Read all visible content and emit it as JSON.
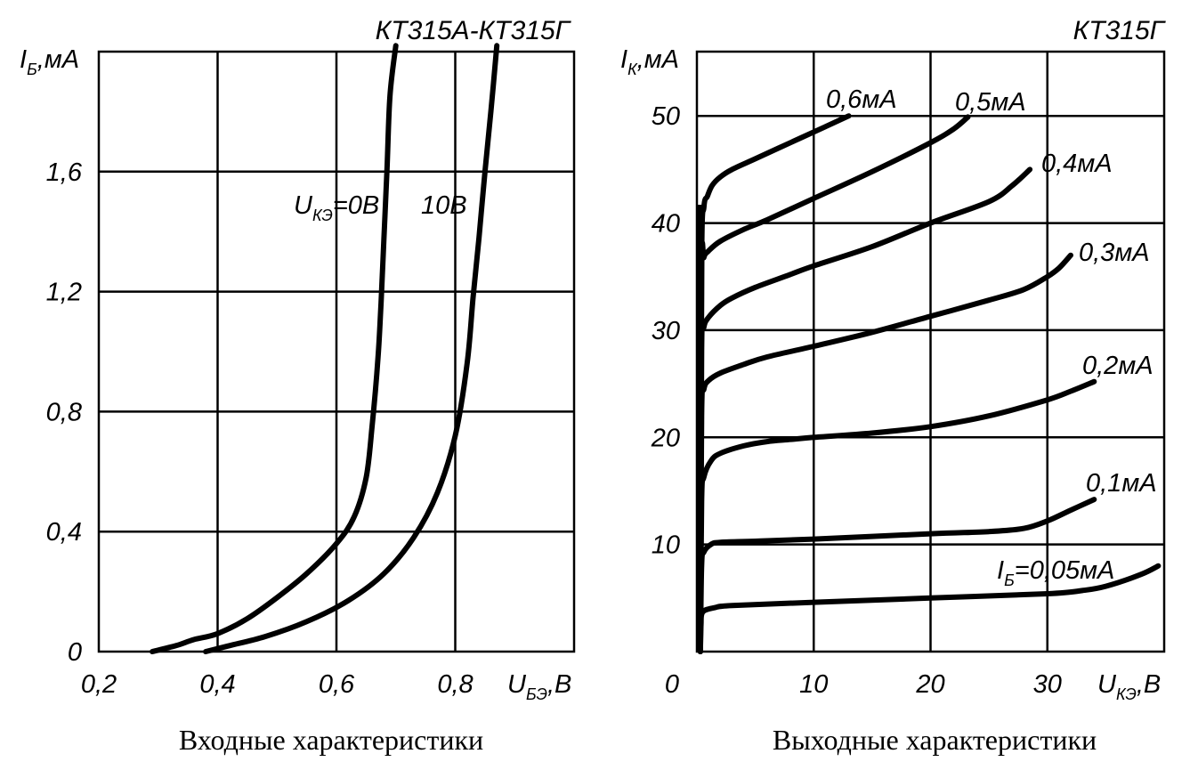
{
  "chart_data": [
    {
      "type": "line",
      "title": "КТ315А-КТ315Г",
      "caption": "Входные характеристики",
      "ylabel": {
        "main": "I",
        "sub": "Б",
        "unit": ",мА"
      },
      "xlabel": {
        "main": "U",
        "sub": "БЭ",
        "unit": ",В"
      },
      "xlim": [
        0.2,
        1.0
      ],
      "ylim": [
        0,
        2.0
      ],
      "x_ticks": [
        0.2,
        0.4,
        0.6,
        0.8
      ],
      "x_tick_labels": [
        "0,2",
        "0,4",
        "0,6",
        "0,8"
      ],
      "y_ticks": [
        0,
        0.4,
        0.8,
        1.2,
        1.6
      ],
      "y_tick_labels": [
        "0",
        "0,4",
        "0,8",
        "1,2",
        "1,6"
      ],
      "grid": true,
      "series": [
        {
          "name": "U_КЭ=0В",
          "label": {
            "main": "U",
            "sub": "КЭ",
            "rest": "=0В"
          },
          "x": [
            0.29,
            0.33,
            0.36,
            0.4,
            0.45,
            0.5,
            0.55,
            0.6,
            0.63,
            0.65,
            0.66,
            0.67,
            0.675,
            0.68,
            0.685,
            0.69,
            0.7
          ],
          "y": [
            0,
            0.02,
            0.04,
            0.06,
            0.11,
            0.18,
            0.26,
            0.36,
            0.45,
            0.58,
            0.75,
            0.98,
            1.16,
            1.38,
            1.6,
            1.85,
            2.02
          ]
        },
        {
          "name": "10В",
          "label": {
            "main": "10В",
            "sub": "",
            "rest": ""
          },
          "x": [
            0.38,
            0.42,
            0.48,
            0.55,
            0.62,
            0.68,
            0.73,
            0.77,
            0.8,
            0.82,
            0.83,
            0.84,
            0.85,
            0.86,
            0.87
          ],
          "y": [
            0,
            0.02,
            0.05,
            0.1,
            0.17,
            0.26,
            0.38,
            0.53,
            0.72,
            0.96,
            1.18,
            1.38,
            1.6,
            1.8,
            2.02
          ]
        }
      ]
    },
    {
      "type": "line",
      "title": "КТ315Г",
      "caption": "Выходные характеристики",
      "ylabel": {
        "main": "I",
        "sub": "К",
        "unit": ",мА"
      },
      "xlabel": {
        "main": "U",
        "sub": "КЭ",
        "unit": ",В"
      },
      "xlim": [
        0,
        40
      ],
      "ylim": [
        0,
        56
      ],
      "x_ticks": [
        10,
        20,
        30
      ],
      "x_tick_labels": [
        "10",
        "20",
        "30"
      ],
      "y_ticks": [
        10,
        20,
        30,
        40,
        50
      ],
      "y_tick_labels": [
        "10",
        "20",
        "30",
        "40",
        "50"
      ],
      "origin_label": "0",
      "grid": true,
      "series": [
        {
          "name": "I_Б=0,05мА",
          "label": {
            "main": "I",
            "sub": "Б",
            "rest": "=0,05мА"
          },
          "x": [
            0.3,
            0.35,
            0.5,
            1.5,
            3,
            10,
            20,
            30,
            33,
            35,
            38,
            39.5
          ],
          "y": [
            0,
            2.5,
            3.7,
            4.1,
            4.3,
            4.6,
            5.0,
            5.4,
            5.7,
            6.1,
            7.2,
            8.0
          ],
          "label_x": 27
        },
        {
          "name": "0,1мА",
          "label": {
            "main": "0,1мА",
            "sub": "",
            "rest": ""
          },
          "x": [
            0.3,
            0.4,
            0.6,
            1.2,
            2,
            5,
            10,
            20,
            25,
            28,
            30,
            32,
            34
          ],
          "y": [
            0,
            8,
            9.3,
            10.0,
            10.2,
            10.3,
            10.5,
            11.0,
            11.2,
            11.5,
            12.2,
            13.2,
            14.2
          ]
        },
        {
          "name": "0,2мА",
          "label": {
            "main": "0,2мА",
            "sub": "",
            "rest": ""
          },
          "x": [
            0.3,
            0.4,
            0.6,
            1.2,
            2,
            4,
            6,
            8,
            10,
            15,
            20,
            25,
            30,
            32,
            34
          ],
          "y": [
            0,
            14,
            16.3,
            17.8,
            18.5,
            19.2,
            19.6,
            19.8,
            20.0,
            20.4,
            21.0,
            22.0,
            23.5,
            24.3,
            25.2
          ]
        },
        {
          "name": "0,3мА",
          "label": {
            "main": "0,3мА",
            "sub": "",
            "rest": ""
          },
          "x": [
            0.3,
            0.4,
            0.6,
            1,
            2,
            4,
            6,
            10,
            15,
            20,
            25,
            28,
            30,
            31,
            32
          ],
          "y": [
            0,
            22,
            24.5,
            25.3,
            26.0,
            26.8,
            27.5,
            28.5,
            29.8,
            31.3,
            32.8,
            33.8,
            35.0,
            35.8,
            37.0
          ]
        },
        {
          "name": "0,4мА",
          "label": {
            "main": "0,4мА",
            "sub": "",
            "rest": ""
          },
          "x": [
            0.3,
            0.4,
            0.6,
            1,
            2,
            3,
            5,
            8,
            10,
            15,
            20,
            25,
            27,
            28.5
          ],
          "y": [
            0,
            28,
            30.3,
            31.2,
            32.3,
            33.0,
            34.0,
            35.2,
            36.0,
            37.8,
            40.0,
            42.0,
            43.5,
            45.0
          ]
        },
        {
          "name": "0,5мА",
          "label": {
            "main": "0,5мА",
            "sub": "",
            "rest": ""
          },
          "x": [
            0.3,
            0.4,
            0.6,
            1,
            2,
            4,
            6,
            10,
            15,
            20,
            22,
            23.2
          ],
          "y": [
            0,
            35,
            36.8,
            37.4,
            38.3,
            39.4,
            40.3,
            42.3,
            44.8,
            47.5,
            48.8,
            49.9
          ]
        },
        {
          "name": "0,6мА",
          "label": {
            "main": "0,6мА",
            "sub": "",
            "rest": ""
          },
          "x": [
            0.3,
            0.4,
            0.6,
            0.9,
            1.3,
            2,
            3,
            5,
            8,
            11,
            13
          ],
          "y": [
            0,
            36,
            41.5,
            42.5,
            43.5,
            44.3,
            45.0,
            46.0,
            47.5,
            49.0,
            50.0
          ]
        }
      ]
    }
  ]
}
